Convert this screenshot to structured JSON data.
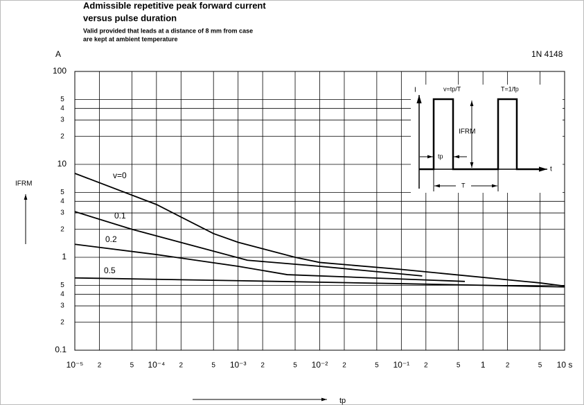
{
  "chart_data": {
    "type": "line",
    "title": "Admissible repetitive peak forward current",
    "subtitle": "versus pulse duration",
    "notes": [
      "Valid provided that leads at a distance of 8 mm from case",
      "are kept at ambient temperature"
    ],
    "y_unit": "A",
    "device": "1N 4148",
    "ylabel": "IFRM",
    "xlabel": "tp",
    "xscale": "log",
    "yscale": "log",
    "grid": true,
    "xlim": [
      1e-05,
      10
    ],
    "ylim": [
      0.1,
      100
    ],
    "xticks": [
      {
        "value": 1e-05,
        "label": "10⁻⁵"
      },
      {
        "value": 2e-05,
        "label": "2"
      },
      {
        "value": 5e-05,
        "label": "5"
      },
      {
        "value": 0.0001,
        "label": "10⁻⁴"
      },
      {
        "value": 0.0002,
        "label": "2"
      },
      {
        "value": 0.0005,
        "label": "5"
      },
      {
        "value": 0.001,
        "label": "10⁻³"
      },
      {
        "value": 0.002,
        "label": "2"
      },
      {
        "value": 0.005,
        "label": "5"
      },
      {
        "value": 0.01,
        "label": "10⁻²"
      },
      {
        "value": 0.02,
        "label": "2"
      },
      {
        "value": 0.05,
        "label": "5"
      },
      {
        "value": 0.1,
        "label": "10⁻¹"
      },
      {
        "value": 0.2,
        "label": "2"
      },
      {
        "value": 0.5,
        "label": "5"
      },
      1,
      2,
      5,
      {
        "value": 10,
        "label": "10 s"
      }
    ],
    "yticks": [
      0.1,
      {
        "value": 0.2,
        "label": "2"
      },
      {
        "value": 0.3,
        "label": "3"
      },
      {
        "value": 0.4,
        "label": "4"
      },
      {
        "value": 0.5,
        "label": "5"
      },
      1,
      2,
      3,
      4,
      5,
      10,
      {
        "value": 20,
        "label": "2"
      },
      {
        "value": 30,
        "label": "3"
      },
      {
        "value": 40,
        "label": "4"
      },
      {
        "value": 50,
        "label": "5"
      },
      100
    ],
    "series": [
      {
        "name": "v=0",
        "color": "#000000",
        "x": [
          1e-05,
          0.0001,
          0.0005,
          0.001,
          0.005,
          0.01,
          0.1,
          5,
          10
        ],
        "values": [
          8,
          3.7,
          1.8,
          1.45,
          1.0,
          0.88,
          0.74,
          0.53,
          0.49
        ]
      },
      {
        "name": "0.1",
        "color": "#000000",
        "x": [
          1e-05,
          5e-05,
          0.0001,
          0.0013,
          0.01,
          0.18
        ],
        "values": [
          3.1,
          2.0,
          1.7,
          0.93,
          0.8,
          0.63
        ]
      },
      {
        "name": "0.2",
        "color": "#000000",
        "x": [
          1e-05,
          0.0001,
          0.001,
          0.004,
          0.6
        ],
        "values": [
          1.38,
          1.07,
          0.8,
          0.65,
          0.55
        ]
      },
      {
        "name": "0.5",
        "color": "#000000",
        "x": [
          1e-05,
          0.001,
          0.1,
          10
        ],
        "values": [
          0.6,
          0.56,
          0.52,
          0.48
        ]
      }
    ],
    "inset": {
      "axis_y": "I",
      "axis_x": "t",
      "duty": "v=tp/T",
      "freq": "T=1/fp",
      "amplitude": "IFRM",
      "width": "tp",
      "period": "T"
    }
  }
}
